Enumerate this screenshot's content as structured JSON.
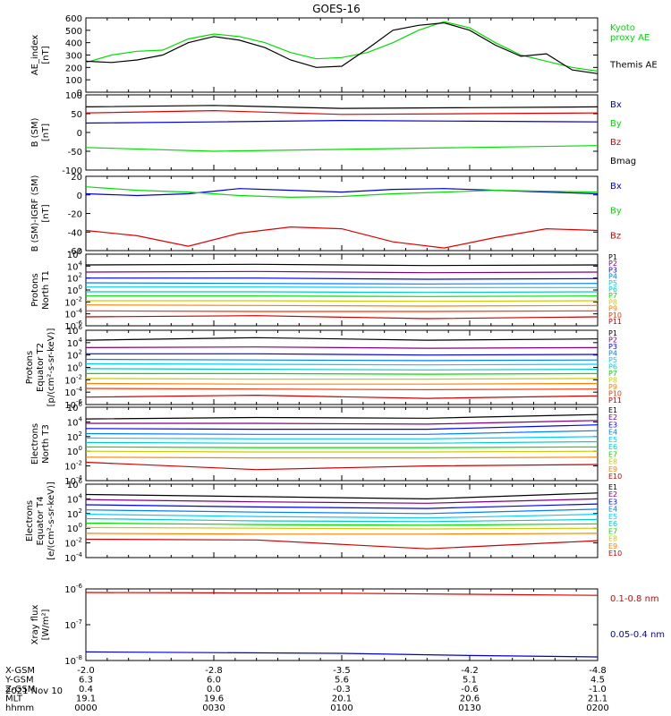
{
  "title": "GOES-16",
  "date_label": "2021 Nov 10",
  "time_ticks": [
    "0000",
    "0030",
    "0100",
    "0130",
    "0200"
  ],
  "ephemeris": {
    "labels": [
      "X-GSM",
      "Y-GSM",
      "Z-GSM",
      "MLT",
      "hhmm"
    ],
    "rows": [
      [
        "-2.0",
        "-2.8",
        "-3.5",
        "-4.2",
        "-4.8"
      ],
      [
        "6.3",
        "6.0",
        "5.6",
        "5.1",
        "4.5"
      ],
      [
        "0.4",
        "0.0",
        "-0.3",
        "-0.6",
        "-1.0"
      ],
      [
        "19.1",
        "19.6",
        "20.1",
        "20.6",
        "21.1"
      ],
      [
        "0000",
        "0030",
        "0100",
        "0130",
        "0200"
      ]
    ]
  },
  "colors": {
    "black": "#000000",
    "green": "#00dd00",
    "blue": "#0000cc",
    "red": "#dd0000",
    "P1": "#000000",
    "P2": "#800080",
    "P3": "#0000ff",
    "P4": "#0080ff",
    "P5": "#00ccff",
    "P6": "#00cccc",
    "P7": "#00dd00",
    "P8": "#cccc00",
    "P9": "#ff8000",
    "P10": "#ff3300",
    "P11": "#cc0000"
  },
  "chart_data": [
    {
      "type": "line",
      "ylabel": "AE_index\n[nT]",
      "yscale": "linear",
      "ylim": [
        0,
        600
      ],
      "yticks": [
        "0",
        "100",
        "200",
        "300",
        "400",
        "500",
        "600"
      ],
      "series": [
        {
          "name": "Kyoto\nproxy AE",
          "color": "#00dd00",
          "x": [
            0,
            6,
            12,
            18,
            24,
            30,
            36,
            42,
            48,
            54,
            60,
            66,
            72,
            78,
            84,
            90,
            96,
            102,
            108,
            114,
            120
          ],
          "values": [
            240,
            300,
            330,
            340,
            430,
            470,
            450,
            400,
            320,
            270,
            280,
            320,
            400,
            500,
            570,
            520,
            400,
            300,
            250,
            200,
            170
          ]
        },
        {
          "name": "Themis AE",
          "color": "#000000",
          "x": [
            0,
            6,
            12,
            18,
            24,
            30,
            36,
            42,
            48,
            54,
            60,
            66,
            72,
            78,
            84,
            90,
            96,
            102,
            108,
            114,
            120
          ],
          "values": [
            250,
            240,
            260,
            300,
            400,
            450,
            420,
            360,
            260,
            200,
            210,
            350,
            500,
            540,
            560,
            500,
            380,
            290,
            310,
            180,
            150
          ]
        }
      ]
    },
    {
      "type": "line",
      "ylabel": "B (SM)\n[nT]",
      "yscale": "linear",
      "ylim": [
        -100,
        100
      ],
      "yticks": [
        "-100",
        "-50",
        "0",
        "50",
        "100"
      ],
      "series": [
        {
          "name": "Bx",
          "color": "#0000cc",
          "x": [
            0,
            30,
            60,
            90,
            120
          ],
          "values": [
            25,
            28,
            32,
            30,
            28
          ]
        },
        {
          "name": "By",
          "color": "#00dd00",
          "x": [
            0,
            30,
            60,
            90,
            120
          ],
          "values": [
            -40,
            -50,
            -45,
            -40,
            -35
          ]
        },
        {
          "name": "Bz",
          "color": "#dd0000",
          "x": [
            0,
            30,
            60,
            90,
            120
          ],
          "values": [
            52,
            58,
            48,
            50,
            52
          ]
        },
        {
          "name": "Bmag",
          "color": "#000000",
          "x": [
            0,
            30,
            60,
            90,
            120
          ],
          "values": [
            68,
            72,
            64,
            66,
            68
          ]
        }
      ]
    },
    {
      "type": "line",
      "ylabel": "B (SM)-IGRF (SM)\n[nT]",
      "yscale": "linear",
      "ylim": [
        -65,
        20
      ],
      "yticks": [
        "-60",
        "-40",
        "-20",
        "0",
        "20"
      ],
      "series": [
        {
          "name": "Bx",
          "color": "#0000cc",
          "x": [
            0,
            12,
            24,
            36,
            48,
            60,
            72,
            84,
            96,
            108,
            120
          ],
          "values": [
            0,
            -2,
            0,
            6,
            4,
            2,
            5,
            6,
            4,
            2,
            0
          ]
        },
        {
          "name": "By",
          "color": "#00dd00",
          "x": [
            0,
            12,
            24,
            36,
            48,
            60,
            72,
            84,
            96,
            108,
            120
          ],
          "values": [
            8,
            4,
            2,
            -2,
            -4,
            -3,
            0,
            2,
            4,
            3,
            2
          ]
        },
        {
          "name": "Bz",
          "color": "#dd0000",
          "x": [
            0,
            12,
            24,
            36,
            48,
            60,
            72,
            84,
            96,
            108,
            120
          ],
          "values": [
            -42,
            -48,
            -60,
            -45,
            -38,
            -40,
            -55,
            -62,
            -50,
            -40,
            -42
          ]
        }
      ]
    },
    {
      "type": "line",
      "ylabel": "Protons\nNorth T1",
      "yscale": "log",
      "ylim": [
        -6,
        6
      ],
      "yticks": [
        "10^-6",
        "10^-4",
        "10^-2",
        "10^0",
        "10^2",
        "10^4",
        "10^6"
      ],
      "series": [
        {
          "name": "P1",
          "color": "#000000",
          "values": [
            4.2,
            4.3,
            4.1,
            4.2
          ]
        },
        {
          "name": "P2",
          "color": "#800080",
          "values": [
            3.0,
            3.1,
            2.9,
            3.0
          ]
        },
        {
          "name": "P3",
          "color": "#0000ff",
          "values": [
            2.0,
            2.0,
            1.8,
            1.9
          ]
        },
        {
          "name": "P4",
          "color": "#0080ff",
          "values": [
            1.2,
            1.1,
            1.0,
            1.1
          ]
        },
        {
          "name": "P5",
          "color": "#00ccff",
          "values": [
            0.5,
            0.5,
            0.4,
            0.4
          ]
        },
        {
          "name": "P6",
          "color": "#00cccc",
          "values": [
            -0.3,
            -0.3,
            -0.4,
            -0.3
          ]
        },
        {
          "name": "P7",
          "color": "#00dd00",
          "values": [
            -1.0,
            -1.0,
            -1.1,
            -1.0
          ]
        },
        {
          "name": "P8",
          "color": "#cccc00",
          "values": [
            -1.8,
            -1.8,
            -1.9,
            -1.8
          ]
        },
        {
          "name": "P9",
          "color": "#ff8000",
          "values": [
            -2.5,
            -2.6,
            -2.7,
            -2.6
          ]
        },
        {
          "name": "P10",
          "color": "#ff3300",
          "values": [
            -3.5,
            -3.6,
            -3.6,
            -3.5
          ]
        },
        {
          "name": "P11",
          "color": "#cc0000",
          "values": [
            -4.5,
            -4.3,
            -4.8,
            -4.5
          ]
        }
      ]
    },
    {
      "type": "line",
      "ylabel": "Protons\nEquator T2\n[p/(cm²-s-sr-keV)]",
      "yscale": "log",
      "ylim": [
        -6,
        6
      ],
      "yticks": [
        "10^-6",
        "10^-4",
        "10^-2",
        "10^0",
        "10^2",
        "10^4",
        "10^6"
      ],
      "series": [
        {
          "name": "P1",
          "color": "#000000",
          "values": [
            4.4,
            4.8,
            4.4,
            4.6
          ]
        },
        {
          "name": "P2",
          "color": "#800080",
          "values": [
            3.2,
            3.3,
            3.1,
            3.2
          ]
        },
        {
          "name": "P3",
          "color": "#0000ff",
          "values": [
            2.2,
            2.2,
            2.0,
            2.1
          ]
        },
        {
          "name": "P4",
          "color": "#0080ff",
          "values": [
            1.3,
            1.2,
            1.1,
            1.2
          ]
        },
        {
          "name": "P5",
          "color": "#00ccff",
          "values": [
            0.6,
            0.5,
            0.4,
            0.5
          ]
        },
        {
          "name": "P6",
          "color": "#00cccc",
          "values": [
            -0.2,
            -0.3,
            -0.4,
            -0.3
          ]
        },
        {
          "name": "P7",
          "color": "#00dd00",
          "values": [
            -1.0,
            -1.0,
            -1.1,
            -1.0
          ]
        },
        {
          "name": "P8",
          "color": "#cccc00",
          "values": [
            -1.8,
            -1.9,
            -1.9,
            -1.8
          ]
        },
        {
          "name": "P9",
          "color": "#ff8000",
          "values": [
            -2.6,
            -2.7,
            -2.7,
            -2.6
          ]
        },
        {
          "name": "P10",
          "color": "#ff3300",
          "values": [
            -3.4,
            -3.5,
            -3.6,
            -3.5
          ]
        },
        {
          "name": "P11",
          "color": "#cc0000",
          "values": [
            -4.8,
            -4.5,
            -5.0,
            -4.6
          ]
        }
      ]
    },
    {
      "type": "line",
      "ylabel": "Electrons\nNorth T3",
      "yscale": "log",
      "ylim": [
        -4,
        6
      ],
      "yticks": [
        "10^-4",
        "10^-2",
        "10^0",
        "10^2",
        "10^4",
        "10^6"
      ],
      "series": [
        {
          "name": "E1",
          "color": "#000000",
          "values": [
            4.4,
            4.6,
            4.5,
            5.0
          ]
        },
        {
          "name": "E2",
          "color": "#800080",
          "values": [
            3.8,
            3.8,
            3.7,
            4.2
          ]
        },
        {
          "name": "E3",
          "color": "#0000ff",
          "values": [
            3.1,
            3.0,
            3.0,
            3.6
          ]
        },
        {
          "name": "E4",
          "color": "#0080ff",
          "values": [
            2.4,
            2.3,
            2.3,
            2.8
          ]
        },
        {
          "name": "E5",
          "color": "#00ccff",
          "values": [
            1.8,
            1.7,
            1.7,
            2.0
          ]
        },
        {
          "name": "E6",
          "color": "#00cccc",
          "values": [
            1.2,
            1.1,
            1.1,
            1.3
          ]
        },
        {
          "name": "E7",
          "color": "#00dd00",
          "values": [
            0.6,
            0.5,
            0.5,
            0.6
          ]
        },
        {
          "name": "E8",
          "color": "#cccc00",
          "values": [
            0.0,
            -0.1,
            -0.1,
            0.0
          ]
        },
        {
          "name": "E9",
          "color": "#ff8000",
          "values": [
            -0.8,
            -0.9,
            -0.9,
            -0.8
          ]
        },
        {
          "name": "E10",
          "color": "#cc0000",
          "values": [
            -1.5,
            -2.5,
            -2.0,
            -1.8
          ]
        }
      ]
    },
    {
      "type": "line",
      "ylabel": "Electrons\nEquator T4\n[e/(cm²-s-sr-keV)]",
      "yscale": "log",
      "ylim": [
        -4,
        6
      ],
      "yticks": [
        "10^-4",
        "10^-2",
        "10^0",
        "10^2",
        "10^4",
        "10^6"
      ],
      "series": [
        {
          "name": "E1",
          "color": "#000000",
          "values": [
            4.6,
            4.3,
            4.0,
            4.8
          ]
        },
        {
          "name": "E2",
          "color": "#800080",
          "values": [
            3.9,
            3.6,
            3.4,
            4.0
          ]
        },
        {
          "name": "E3",
          "color": "#0000ff",
          "values": [
            3.2,
            2.9,
            2.7,
            3.3
          ]
        },
        {
          "name": "E4",
          "color": "#0080ff",
          "values": [
            2.5,
            2.2,
            2.0,
            2.6
          ]
        },
        {
          "name": "E5",
          "color": "#00ccff",
          "values": [
            1.9,
            1.6,
            1.4,
            1.9
          ]
        },
        {
          "name": "E6",
          "color": "#00cccc",
          "values": [
            1.3,
            1.0,
            0.9,
            1.2
          ]
        },
        {
          "name": "E7",
          "color": "#00dd00",
          "values": [
            0.7,
            0.5,
            0.4,
            0.6
          ]
        },
        {
          "name": "E8",
          "color": "#cccc00",
          "values": [
            0.1,
            0.0,
            -0.1,
            0.0
          ]
        },
        {
          "name": "E9",
          "color": "#ff8000",
          "values": [
            -0.7,
            -0.8,
            -0.8,
            -0.7
          ]
        },
        {
          "name": "E10",
          "color": "#cc0000",
          "values": [
            -1.5,
            -1.6,
            -2.8,
            -1.7
          ]
        }
      ]
    },
    {
      "type": "line",
      "ylabel": "Xray flux\n[W/m²]",
      "yscale": "log",
      "ylim": [
        -8,
        -6
      ],
      "yticks": [
        "10^-8",
        "10^-7",
        "10^-6"
      ],
      "series": [
        {
          "name": "0.1-0.8 nm",
          "color": "#dd0000",
          "x": [
            0,
            30,
            60,
            90,
            120
          ],
          "values": [
            -6.1,
            -6.11,
            -6.12,
            -6.15,
            -6.18
          ]
        },
        {
          "name": "0.05-0.4 nm",
          "color": "#0000cc",
          "x": [
            0,
            30,
            60,
            90,
            120
          ],
          "values": [
            -7.76,
            -7.78,
            -7.8,
            -7.86,
            -7.9
          ]
        }
      ]
    }
  ]
}
